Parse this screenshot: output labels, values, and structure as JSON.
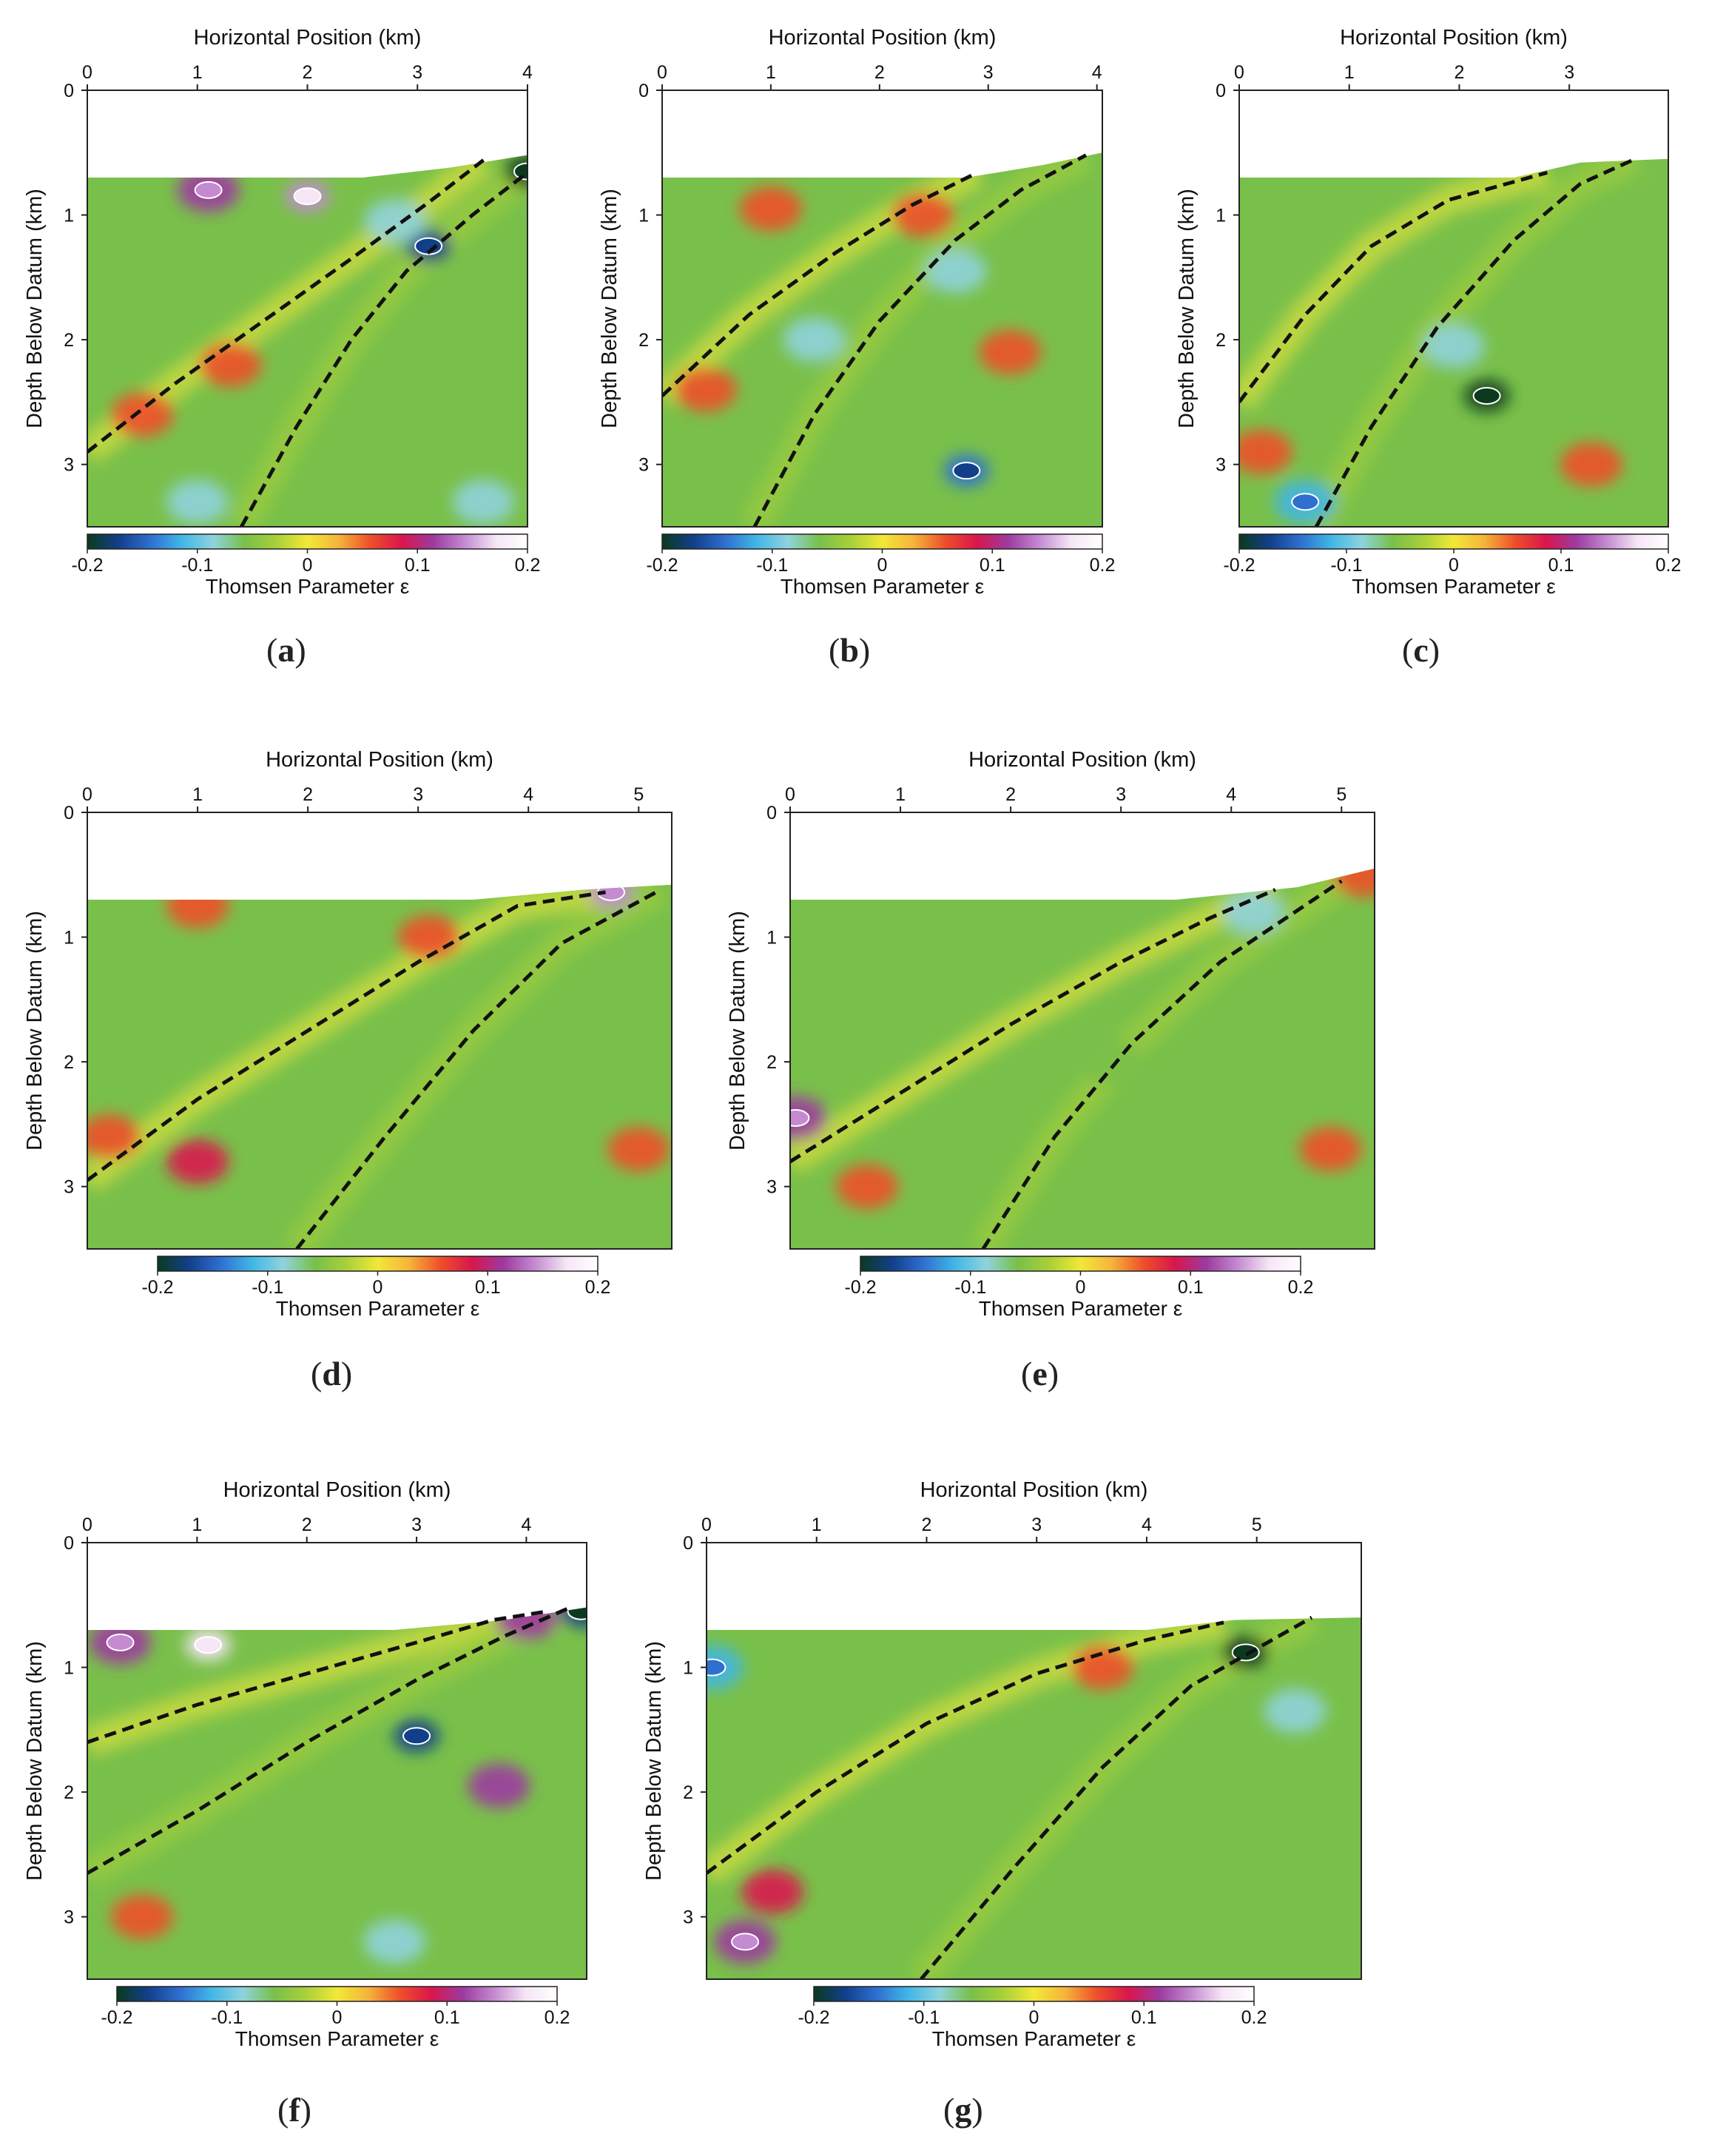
{
  "colors": {
    "colormap": [
      "#0b3a1f",
      "#123f8a",
      "#2e6fd0",
      "#41b6e6",
      "#8fd3dd",
      "#79c04a",
      "#a8d039",
      "#f2e838",
      "#f5b43a",
      "#ee4f2a",
      "#d9164c",
      "#9c3aa0",
      "#c48bd0",
      "#f6e6f6",
      "#ffffff"
    ],
    "contour_line": "#111111",
    "background_field": "#79c04a"
  },
  "chart_data": [
    {
      "id": "a",
      "panel_label": "a",
      "type": "heatmap",
      "xlabel": "Horizontal Position (km)",
      "ylabel": "Depth Below Datum (km)",
      "colorbar_label": "Thomsen Parameter ε",
      "x_ticks": [
        "0",
        "1",
        "2",
        "3",
        "4"
      ],
      "y_ticks": [
        "0",
        "1",
        "2",
        "3"
      ],
      "colorbar_ticks": [
        "-0.2",
        "-0.1",
        "0",
        "0.1",
        "0.2"
      ],
      "xlim": [
        0,
        4.0
      ],
      "ylim": [
        0,
        3.5
      ],
      "clim": [
        -0.2,
        0.2
      ],
      "surface": [
        [
          0,
          0.7
        ],
        [
          2.5,
          0.7
        ],
        [
          3.3,
          0.62
        ],
        [
          4.0,
          0.52
        ]
      ],
      "faults": [
        [
          [
            0,
            2.9
          ],
          [
            0.8,
            2.35
          ],
          [
            1.6,
            1.85
          ],
          [
            2.4,
            1.35
          ],
          [
            3.1,
            0.9
          ],
          [
            3.6,
            0.56
          ]
        ],
        [
          [
            1.4,
            3.5
          ],
          [
            1.9,
            2.7
          ],
          [
            2.4,
            2.0
          ],
          [
            2.9,
            1.45
          ],
          [
            3.5,
            1.0
          ],
          [
            4.0,
            0.66
          ]
        ]
      ],
      "anomalies": [
        {
          "x": 1.1,
          "y": 0.8,
          "value": 0.12
        },
        {
          "x": 2.0,
          "y": 0.85,
          "value": 0.14
        },
        {
          "x": 3.1,
          "y": 1.25,
          "value": -0.16
        },
        {
          "x": 4.0,
          "y": 0.65,
          "value": -0.2
        },
        {
          "x": 2.8,
          "y": 1.05,
          "value": -0.09
        },
        {
          "x": 0.5,
          "y": 2.6,
          "value": 0.06
        },
        {
          "x": 1.3,
          "y": 2.2,
          "value": 0.05
        },
        {
          "x": 1.0,
          "y": 3.3,
          "value": -0.08
        },
        {
          "x": 3.6,
          "y": 3.3,
          "value": -0.09
        },
        {
          "x": 2.9,
          "y": 3.1,
          "value": -0.07
        }
      ]
    },
    {
      "id": "b",
      "panel_label": "b",
      "type": "heatmap",
      "xlabel": "Horizontal Position (km)",
      "ylabel": "Depth Below Datum (km)",
      "colorbar_label": "Thomsen Parameter ε",
      "x_ticks": [
        "0",
        "1",
        "2",
        "3",
        "4"
      ],
      "y_ticks": [
        "0",
        "1",
        "2",
        "3"
      ],
      "colorbar_ticks": [
        "-0.2",
        "-0.1",
        "0",
        "0.1",
        "0.2"
      ],
      "xlim": [
        0,
        4.05
      ],
      "ylim": [
        0,
        3.5
      ],
      "clim": [
        -0.2,
        0.2
      ],
      "surface": [
        [
          0,
          0.7
        ],
        [
          2.8,
          0.7
        ],
        [
          3.5,
          0.6
        ],
        [
          4.05,
          0.5
        ]
      ],
      "faults": [
        [
          [
            0,
            2.45
          ],
          [
            0.8,
            1.8
          ],
          [
            1.6,
            1.3
          ],
          [
            2.3,
            0.92
          ],
          [
            2.9,
            0.66
          ]
        ],
        [
          [
            0.85,
            3.5
          ],
          [
            1.4,
            2.6
          ],
          [
            2.0,
            1.85
          ],
          [
            2.7,
            1.2
          ],
          [
            3.3,
            0.8
          ],
          [
            3.9,
            0.52
          ]
        ]
      ],
      "anomalies": [
        {
          "x": 1.0,
          "y": 0.95,
          "value": 0.07
        },
        {
          "x": 2.4,
          "y": 1.0,
          "value": 0.06
        },
        {
          "x": 2.7,
          "y": 1.45,
          "value": -0.08
        },
        {
          "x": 1.4,
          "y": 2.0,
          "value": -0.08
        },
        {
          "x": 2.8,
          "y": 3.05,
          "value": -0.15
        },
        {
          "x": 3.2,
          "y": 2.1,
          "value": 0.05
        },
        {
          "x": 0.4,
          "y": 2.4,
          "value": 0.06
        }
      ]
    },
    {
      "id": "c",
      "panel_label": "c",
      "type": "heatmap",
      "xlabel": "Horizontal Position (km)",
      "ylabel": "Depth Below Datum (km)",
      "colorbar_label": "Thomsen Parameter ε",
      "x_ticks": [
        "0",
        "1",
        "2",
        "3"
      ],
      "y_ticks": [
        "0",
        "1",
        "2",
        "3"
      ],
      "colorbar_ticks": [
        "-0.2",
        "-0.1",
        "0",
        "0.1",
        "0.2"
      ],
      "xlim": [
        0,
        3.9
      ],
      "ylim": [
        0,
        3.5
      ],
      "clim": [
        -0.2,
        0.2
      ],
      "surface": [
        [
          0,
          0.7
        ],
        [
          2.5,
          0.7
        ],
        [
          3.1,
          0.58
        ],
        [
          3.9,
          0.55
        ]
      ],
      "faults": [
        [
          [
            0,
            2.5
          ],
          [
            0.6,
            1.8
          ],
          [
            1.2,
            1.25
          ],
          [
            1.9,
            0.88
          ],
          [
            2.8,
            0.66
          ]
        ],
        [
          [
            0.7,
            3.5
          ],
          [
            1.2,
            2.7
          ],
          [
            1.8,
            1.9
          ],
          [
            2.5,
            1.2
          ],
          [
            3.1,
            0.75
          ],
          [
            3.6,
            0.55
          ]
        ]
      ],
      "anomalies": [
        {
          "x": 2.25,
          "y": 2.45,
          "value": -0.2
        },
        {
          "x": 1.95,
          "y": 2.05,
          "value": -0.1
        },
        {
          "x": 0.6,
          "y": 3.3,
          "value": -0.12
        },
        {
          "x": 1.5,
          "y": 1.5,
          "value": -0.07
        },
        {
          "x": 3.8,
          "y": 0.8,
          "value": -0.07
        },
        {
          "x": 0.2,
          "y": 2.9,
          "value": 0.05
        },
        {
          "x": 3.2,
          "y": 3.0,
          "value": 0.05
        }
      ]
    },
    {
      "id": "d",
      "panel_label": "d",
      "type": "heatmap",
      "xlabel": "Horizontal Position (km)",
      "ylabel": "Depth Below Datum (km)",
      "colorbar_label": "Thomsen Parameter ε",
      "x_ticks": [
        "0",
        "1",
        "2",
        "3",
        "4",
        "5"
      ],
      "y_ticks": [
        "0",
        "1",
        "2",
        "3"
      ],
      "colorbar_ticks": [
        "-0.2",
        "-0.1",
        "0",
        "0.1",
        "0.2"
      ],
      "xlim": [
        0,
        5.3
      ],
      "ylim": [
        0,
        3.5
      ],
      "clim": [
        -0.2,
        0.2
      ],
      "surface": [
        [
          0,
          0.7
        ],
        [
          3.5,
          0.7
        ],
        [
          4.5,
          0.62
        ],
        [
          5.3,
          0.58
        ]
      ],
      "faults": [
        [
          [
            0,
            2.95
          ],
          [
            1.0,
            2.3
          ],
          [
            2.0,
            1.75
          ],
          [
            3.0,
            1.2
          ],
          [
            3.9,
            0.75
          ],
          [
            4.7,
            0.64
          ]
        ],
        [
          [
            1.9,
            3.5
          ],
          [
            2.7,
            2.6
          ],
          [
            3.5,
            1.75
          ],
          [
            4.3,
            1.05
          ],
          [
            5.2,
            0.62
          ]
        ]
      ],
      "anomalies": [
        {
          "x": 4.75,
          "y": 0.64,
          "value": 0.13
        },
        {
          "x": 1.0,
          "y": 0.75,
          "value": 0.06
        },
        {
          "x": 1.0,
          "y": 2.8,
          "value": 0.08
        },
        {
          "x": 0.2,
          "y": 2.6,
          "value": 0.06
        },
        {
          "x": 3.1,
          "y": 1.0,
          "value": 0.05
        },
        {
          "x": 5.0,
          "y": 2.7,
          "value": 0.05
        }
      ]
    },
    {
      "id": "e",
      "panel_label": "e",
      "type": "heatmap",
      "xlabel": "Horizontal Position (km)",
      "ylabel": "Depth Below Datum (km)",
      "colorbar_label": "Thomsen Parameter ε",
      "x_ticks": [
        "0",
        "1",
        "2",
        "3",
        "4",
        "5"
      ],
      "y_ticks": [
        "0",
        "1",
        "2",
        "3"
      ],
      "colorbar_ticks": [
        "-0.2",
        "-0.1",
        "0",
        "0.1",
        "0.2"
      ],
      "xlim": [
        0,
        5.3
      ],
      "ylim": [
        0,
        3.5
      ],
      "clim": [
        -0.2,
        0.2
      ],
      "surface": [
        [
          0,
          0.7
        ],
        [
          3.5,
          0.7
        ],
        [
          4.6,
          0.6
        ],
        [
          5.3,
          0.45
        ]
      ],
      "faults": [
        [
          [
            0,
            2.8
          ],
          [
            1.0,
            2.25
          ],
          [
            2.0,
            1.7
          ],
          [
            3.0,
            1.2
          ],
          [
            3.8,
            0.85
          ],
          [
            4.4,
            0.62
          ]
        ],
        [
          [
            1.75,
            3.5
          ],
          [
            2.4,
            2.6
          ],
          [
            3.1,
            1.85
          ],
          [
            3.9,
            1.2
          ],
          [
            5.0,
            0.55
          ]
        ]
      ],
      "anomalies": [
        {
          "x": 0.05,
          "y": 2.45,
          "value": 0.12
        },
        {
          "x": 0.7,
          "y": 3.0,
          "value": 0.07
        },
        {
          "x": 4.2,
          "y": 0.8,
          "value": -0.08
        },
        {
          "x": 2.9,
          "y": 2.0,
          "value": -0.06
        },
        {
          "x": 5.2,
          "y": 0.5,
          "value": 0.06
        },
        {
          "x": 4.9,
          "y": 2.7,
          "value": 0.05
        },
        {
          "x": 0.3,
          "y": 1.2,
          "value": -0.05
        }
      ]
    },
    {
      "id": "f",
      "panel_label": "f",
      "type": "heatmap",
      "xlabel": "Horizontal Position (km)",
      "ylabel": "Depth Below Datum (km)",
      "colorbar_label": "Thomsen Parameter ε",
      "x_ticks": [
        "0",
        "1",
        "2",
        "3",
        "4"
      ],
      "y_ticks": [
        "0",
        "1",
        "2",
        "3"
      ],
      "colorbar_ticks": [
        "-0.2",
        "-0.1",
        "0",
        "0.1",
        "0.2"
      ],
      "xlim": [
        0,
        4.55
      ],
      "ylim": [
        0,
        3.5
      ],
      "clim": [
        -0.2,
        0.2
      ],
      "surface": [
        [
          0,
          0.7
        ],
        [
          2.8,
          0.7
        ],
        [
          3.8,
          0.62
        ],
        [
          4.55,
          0.52
        ]
      ],
      "faults": [
        [
          [
            0,
            1.6
          ],
          [
            1.0,
            1.3
          ],
          [
            2.0,
            1.05
          ],
          [
            3.0,
            0.8
          ],
          [
            3.7,
            0.62
          ],
          [
            4.2,
            0.55
          ]
        ],
        [
          [
            0,
            2.65
          ],
          [
            1.0,
            2.15
          ],
          [
            2.0,
            1.6
          ],
          [
            3.0,
            1.1
          ],
          [
            3.8,
            0.75
          ],
          [
            4.4,
            0.52
          ]
        ]
      ],
      "anomalies": [
        {
          "x": 0.3,
          "y": 0.8,
          "value": 0.12
        },
        {
          "x": 1.1,
          "y": 0.82,
          "value": 0.16
        },
        {
          "x": 3.0,
          "y": 1.55,
          "value": -0.16
        },
        {
          "x": 4.0,
          "y": 0.6,
          "value": 0.1
        },
        {
          "x": 4.5,
          "y": 0.55,
          "value": -0.18
        },
        {
          "x": 3.75,
          "y": 1.95,
          "value": 0.1
        },
        {
          "x": 1.8,
          "y": 2.2,
          "value": -0.07
        },
        {
          "x": 2.8,
          "y": 3.2,
          "value": -0.09
        },
        {
          "x": 0.5,
          "y": 3.0,
          "value": 0.06
        }
      ]
    },
    {
      "id": "g",
      "panel_label": "g",
      "type": "heatmap",
      "xlabel": "Horizontal Position (km)",
      "ylabel": "Depth Below Datum (km)",
      "colorbar_label": "Thomsen Parameter ε",
      "x_ticks": [
        "0",
        "1",
        "2",
        "3",
        "4",
        "5"
      ],
      "y_ticks": [
        "0",
        "1",
        "2",
        "3"
      ],
      "colorbar_ticks": [
        "-0.2",
        "-0.1",
        "0",
        "0.1",
        "0.2"
      ],
      "xlim": [
        0,
        5.95
      ],
      "ylim": [
        0,
        3.5
      ],
      "clim": [
        -0.2,
        0.2
      ],
      "surface": [
        [
          0,
          0.7
        ],
        [
          4.0,
          0.7
        ],
        [
          4.8,
          0.62
        ],
        [
          5.95,
          0.6
        ]
      ],
      "faults": [
        [
          [
            0,
            2.65
          ],
          [
            1.0,
            2.0
          ],
          [
            2.0,
            1.45
          ],
          [
            3.0,
            1.05
          ],
          [
            4.0,
            0.78
          ],
          [
            4.7,
            0.64
          ]
        ],
        [
          [
            1.95,
            3.5
          ],
          [
            2.8,
            2.6
          ],
          [
            3.6,
            1.8
          ],
          [
            4.4,
            1.15
          ],
          [
            5.5,
            0.6
          ]
        ]
      ],
      "anomalies": [
        {
          "x": 4.9,
          "y": 0.88,
          "value": -0.2
        },
        {
          "x": 0.35,
          "y": 3.2,
          "value": 0.12
        },
        {
          "x": 0.6,
          "y": 2.8,
          "value": 0.08
        },
        {
          "x": 0.05,
          "y": 1.0,
          "value": -0.12
        },
        {
          "x": 5.35,
          "y": 1.35,
          "value": -0.1
        },
        {
          "x": 3.6,
          "y": 1.0,
          "value": 0.05
        }
      ]
    }
  ]
}
